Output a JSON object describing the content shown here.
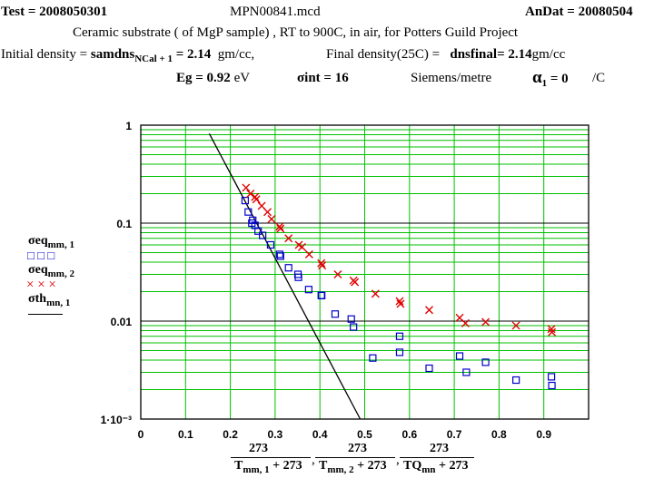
{
  "header": {
    "test_label": "Test = ",
    "test_id": "2008050301",
    "filename": "MPN00841.mcd",
    "andat_label": "AnDat = ",
    "andat_value": "20080504",
    "description": "Ceramic substrate ( of MgP sample) , RT to 900C, in  air, for Potters Guild Project",
    "initial_density_label": "Initial density = ",
    "initial_density_var": "samdns",
    "initial_density_sub": "NCal + 1",
    "initial_density_value": " = 2.14",
    "initial_density_unit": "gm/cc,",
    "final_density_label": "Final density(25C) = ",
    "final_density_var": "dnsfinal",
    "final_density_value": "= 2.14",
    "final_density_unit": "gm/cc",
    "eg_label": "Eg = 0.92",
    "eg_unit": "eV",
    "sigma_int_label": "σint = 16",
    "sigma_int_unit": "Siemens/metre",
    "alpha_symbol": "α",
    "alpha_sub": "1",
    "alpha_value": " = 0",
    "alpha_unit": "/C"
  },
  "legend": {
    "s1_name": "σeq",
    "s1_sub": "mm, 1",
    "s1_marks": "□   □   □",
    "s2_name": "σeq",
    "s2_sub": "mm, 2",
    "s2_marks": "×   ×   ×",
    "s3_name": "σth",
    "s3_sub": "mn, 1"
  },
  "xlabel": {
    "n1": "273",
    "d1": "T",
    "d1_sub": "mm, 1",
    "d1_rest": " + 273",
    "n2": "273",
    "d2": "T",
    "d2_sub": "mm, 2",
    "d2_rest": " + 273",
    "n3": "273",
    "d3": "TQ",
    "d3_sub": "mn",
    "d3_rest": " + 273"
  },
  "colors": {
    "grid_minor": "#00c000",
    "grid_major": "#000000",
    "series1": "#0000cc",
    "series2": "#e00000",
    "line": "#000000"
  },
  "chart_data": {
    "type": "scatter",
    "x_scale": "linear",
    "y_scale": "log",
    "xlim": [
      0,
      1
    ],
    "ylim": [
      0.001,
      1
    ],
    "x_ticks": [
      "0",
      "0.1",
      "0.2",
      "0.3",
      "0.4",
      "0.5",
      "0.6",
      "0.7",
      "0.8",
      "0.9"
    ],
    "y_ticks": [
      "1",
      "0.1",
      "0.01",
      "1·10⁻³"
    ],
    "series": [
      {
        "name": "σeq mm, 1",
        "marker": "square",
        "x": [
          0.233,
          0.24,
          0.248,
          0.25,
          0.255,
          0.262,
          0.272,
          0.29,
          0.31,
          0.312,
          0.33,
          0.351,
          0.352,
          0.375,
          0.403,
          0.404,
          0.434,
          0.47,
          0.475,
          0.518,
          0.578,
          0.578,
          0.644,
          0.712,
          0.727,
          0.77,
          0.838,
          0.917,
          0.918
        ],
        "y": [
          0.17,
          0.13,
          0.1,
          0.107,
          0.095,
          0.083,
          0.075,
          0.06,
          0.048,
          0.046,
          0.035,
          0.03,
          0.028,
          0.021,
          0.0183,
          0.0182,
          0.0118,
          0.0105,
          0.0087,
          0.0042,
          0.007,
          0.0048,
          0.0033,
          0.0044,
          0.003,
          0.0038,
          0.0025,
          0.0027,
          0.0022
        ]
      },
      {
        "name": "σeq mm, 2",
        "marker": "x",
        "x": [
          0.235,
          0.245,
          0.255,
          0.258,
          0.27,
          0.283,
          0.292,
          0.31,
          0.312,
          0.33,
          0.353,
          0.36,
          0.376,
          0.403,
          0.405,
          0.44,
          0.475,
          0.478,
          0.524,
          0.578,
          0.58,
          0.644,
          0.712,
          0.725,
          0.77,
          0.838,
          0.917,
          0.918
        ],
        "y": [
          0.23,
          0.2,
          0.185,
          0.175,
          0.15,
          0.13,
          0.11,
          0.092,
          0.088,
          0.07,
          0.06,
          0.057,
          0.048,
          0.039,
          0.037,
          0.03,
          0.026,
          0.025,
          0.019,
          0.016,
          0.015,
          0.013,
          0.0108,
          0.0095,
          0.0098,
          0.009,
          0.0083,
          0.0077
        ]
      },
      {
        "name": "σth mn, 1",
        "type": "line",
        "x": [
          0.153,
          0.49
        ],
        "y": [
          0.82,
          0.001
        ]
      }
    ]
  }
}
